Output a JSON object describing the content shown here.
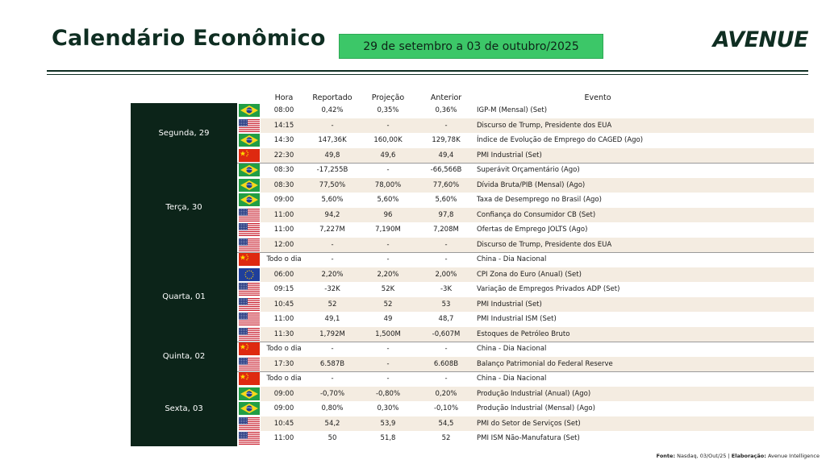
{
  "title": "Calendário Econômico",
  "date_range": "29 de setembro a 03 de outubro/2025",
  "logo_text": "AVENUE",
  "columns": {
    "hora": "Hora",
    "reportado": "Reportado",
    "projecao": "Projeção",
    "anterior": "Anterior",
    "evento": "Evento"
  },
  "days": [
    {
      "label": "Segunda, 29",
      "rows": [
        {
          "flag": "br",
          "hora": "08:00",
          "reportado": "0,42%",
          "projecao": "0,35%",
          "anterior": "0,36%",
          "evento": "IGP-M (Mensal) (Set)"
        },
        {
          "flag": "us",
          "hora": "14:15",
          "reportado": "-",
          "projecao": "-",
          "anterior": "-",
          "evento": "Discurso de Trump, Presidente dos EUA"
        },
        {
          "flag": "br",
          "hora": "14:30",
          "reportado": "147,36K",
          "projecao": "160,00K",
          "anterior": "129,78K",
          "evento": "Índice de Evolução de Emprego do CAGED (Ago)"
        },
        {
          "flag": "cn",
          "hora": "22:30",
          "reportado": "49,8",
          "projecao": "49,6",
          "anterior": "49,4",
          "evento": "PMI Industrial (Set)"
        }
      ]
    },
    {
      "label": "Terça, 30",
      "rows": [
        {
          "flag": "br",
          "hora": "08:30",
          "reportado": "-17,255B",
          "projecao": "-",
          "anterior": "-66,566B",
          "evento": "Superávit Orçamentário (Ago)"
        },
        {
          "flag": "br",
          "hora": "08:30",
          "reportado": "77,50%",
          "projecao": "78,00%",
          "anterior": "77,60%",
          "evento": "Dívida Bruta/PIB (Mensal) (Ago)"
        },
        {
          "flag": "br",
          "hora": "09:00",
          "reportado": "5,60%",
          "projecao": "5,60%",
          "anterior": "5,60%",
          "evento": "Taxa de Desemprego no Brasil (Ago)"
        },
        {
          "flag": "us",
          "hora": "11:00",
          "reportado": "94,2",
          "projecao": "96",
          "anterior": "97,8",
          "evento": "Confiança do Consumidor CB (Set)"
        },
        {
          "flag": "us",
          "hora": "11:00",
          "reportado": "7,227M",
          "projecao": "7,190M",
          "anterior": "7,208M",
          "evento": "Ofertas de Emprego JOLTS (Ago)"
        },
        {
          "flag": "us",
          "hora": "12:00",
          "reportado": "-",
          "projecao": "-",
          "anterior": "-",
          "evento": "Discurso de Trump, Presidente dos EUA"
        }
      ]
    },
    {
      "label": "Quarta, 01",
      "rows": [
        {
          "flag": "cn",
          "hora": "Todo o dia",
          "reportado": "-",
          "projecao": "-",
          "anterior": "-",
          "evento": "China - Dia Nacional"
        },
        {
          "flag": "eu",
          "hora": "06:00",
          "reportado": "2,20%",
          "projecao": "2,20%",
          "anterior": "2,00%",
          "evento": "CPI Zona do Euro (Anual) (Set)"
        },
        {
          "flag": "us",
          "hora": "09:15",
          "reportado": "-32K",
          "projecao": "52K",
          "anterior": "-3K",
          "evento": "Variação de Empregos Privados ADP (Set)"
        },
        {
          "flag": "us",
          "hora": "10:45",
          "reportado": "52",
          "projecao": "52",
          "anterior": "53",
          "evento": "PMI Industrial (Set)"
        },
        {
          "flag": "us",
          "hora": "11:00",
          "reportado": "49,1",
          "projecao": "49",
          "anterior": "48,7",
          "evento": "PMI Industrial ISM (Set)"
        },
        {
          "flag": "us",
          "hora": "11:30",
          "reportado": "1,792M",
          "projecao": "1,500M",
          "anterior": "-0,607M",
          "evento": "Estoques de Petróleo Bruto"
        }
      ]
    },
    {
      "label": "Quinta, 02",
      "rows": [
        {
          "flag": "cn",
          "hora": "Todo o dia",
          "reportado": "-",
          "projecao": "-",
          "anterior": "-",
          "evento": "China - Dia Nacional"
        },
        {
          "flag": "us",
          "hora": "17:30",
          "reportado": "6.587B",
          "projecao": "-",
          "anterior": "6.608B",
          "evento": "Balanço Patrimonial do Federal Reserve"
        }
      ]
    },
    {
      "label": "Sexta, 03",
      "rows": [
        {
          "flag": "cn",
          "hora": "Todo o dia",
          "reportado": "-",
          "projecao": "-",
          "anterior": "-",
          "evento": "China - Dia Nacional"
        },
        {
          "flag": "br",
          "hora": "09:00",
          "reportado": "-0,70%",
          "projecao": "-0,80%",
          "anterior": "0,20%",
          "evento": "Produção Industrial (Anual) (Ago)"
        },
        {
          "flag": "br",
          "hora": "09:00",
          "reportado": "0,80%",
          "projecao": "0,30%",
          "anterior": "-0,10%",
          "evento": "Produção Industrial (Mensal) (Ago)"
        },
        {
          "flag": "us",
          "hora": "10:45",
          "reportado": "54,2",
          "projecao": "53,9",
          "anterior": "54,5",
          "evento": "PMI do Setor de Serviços (Set)"
        },
        {
          "flag": "us",
          "hora": "11:00",
          "reportado": "50",
          "projecao": "51,8",
          "anterior": "52",
          "evento": "PMI ISM Não-Manufatura (Set)"
        }
      ]
    }
  ],
  "footer": {
    "fonte_label": "Fonte:",
    "fonte_value": "Nasdaq, 03/Out/25",
    "separator": "|",
    "elaboracao_label": "Elaboração:",
    "elaboracao_value": "Avenue Intelligence"
  },
  "colors": {
    "brand_dark": "#0c2419",
    "date_green": "#3cc768",
    "row_shade": "#f4ece1"
  }
}
